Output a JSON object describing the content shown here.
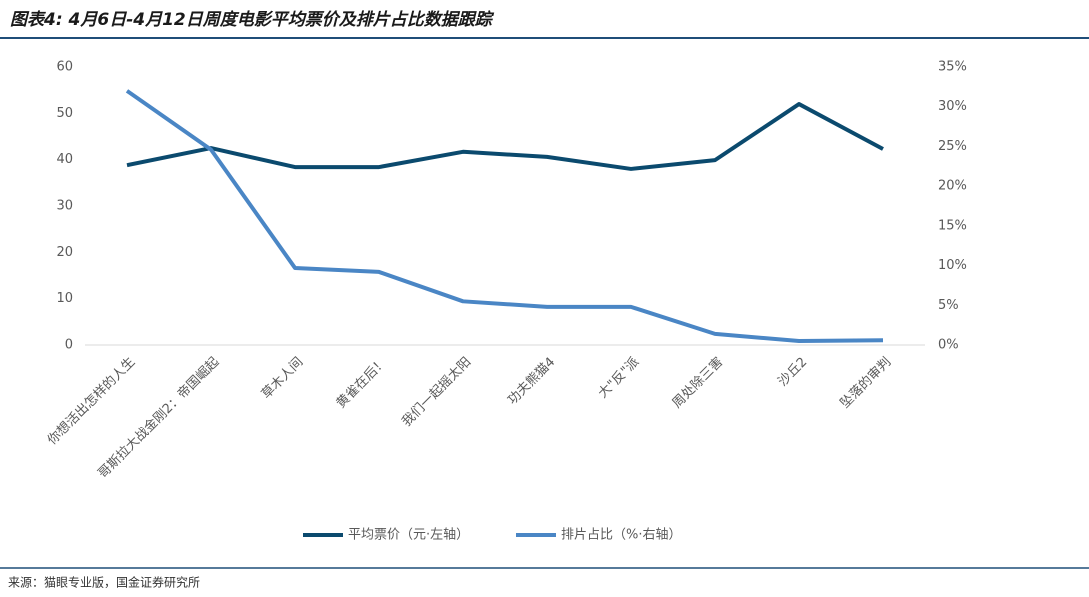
{
  "title": "图表4: 4月6日-4月12日周度电影平均票价及排片占比数据跟踪",
  "source": "来源：猫眼专业版，国金证券研究所",
  "chart_data": {
    "type": "line",
    "categories": [
      "你想活出怎样的人生",
      "哥斯拉大战金刚2：帝国崛起",
      "草木人间",
      "黄雀在后！",
      "我们一起摇太阳",
      "功夫熊猫4",
      "大\"反\"派",
      "周处除三害",
      "沙丘2",
      "坠落的审判"
    ],
    "series": [
      {
        "name": "平均票价（元·左轴）",
        "color": "#0b4a6e",
        "values": [
          38.8,
          42.5,
          38.4,
          38.4,
          41.7,
          40.6,
          38.0,
          39.9,
          52.0,
          42.3
        ]
      },
      {
        "name": "排片占比（%·右轴）",
        "color": "#4a86c5",
        "axis": "y2",
        "values": [
          32.0,
          24.6,
          9.7,
          9.2,
          5.5,
          4.8,
          4.8,
          1.4,
          0.5,
          0.6
        ]
      }
    ],
    "ylim": [
      0,
      60
    ],
    "yticks": [
      0,
      10,
      20,
      30,
      40,
      50,
      60
    ],
    "y2lim": [
      0,
      35
    ],
    "y2ticks": [
      {
        "value": 0,
        "label": "0%"
      },
      {
        "value": 5,
        "label": "5%"
      },
      {
        "value": 10,
        "label": "10%"
      },
      {
        "value": 15,
        "label": "15%"
      },
      {
        "value": 20,
        "label": "20%"
      },
      {
        "value": 25,
        "label": "25%"
      },
      {
        "value": 30,
        "label": "30%"
      },
      {
        "value": 35,
        "label": "35%"
      }
    ]
  }
}
